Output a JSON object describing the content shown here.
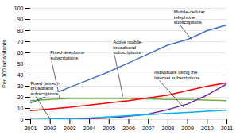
{
  "chart_data": {
    "type": "line",
    "x": [
      2001,
      2002,
      2003,
      2004,
      2005,
      2006,
      2007,
      2008,
      2009,
      2010,
      2011
    ],
    "series": [
      {
        "color": "#4472C4",
        "values": [
          15,
          22,
          29,
          36,
          43,
          51,
          59,
          67,
          72,
          80,
          85
        ]
      },
      {
        "color": "#70AD47",
        "values": [
          17,
          18,
          19,
          19,
          19,
          19,
          18.5,
          18,
          18,
          17.5,
          17
        ]
      },
      {
        "color": "#FF0000",
        "values": [
          8,
          9.5,
          11,
          13,
          15,
          17,
          19.5,
          22,
          26,
          30,
          33
        ]
      },
      {
        "color": "#7030A0",
        "values": [
          0,
          0,
          0.3,
          0.8,
          1.5,
          3,
          5,
          9,
          14,
          22,
          32
        ]
      },
      {
        "color": "#00B0F0",
        "values": [
          0,
          0.3,
          0.8,
          1.5,
          2.5,
          3.5,
          4.5,
          5.5,
          6.5,
          7.5,
          8.5
        ]
      }
    ],
    "annotations": [
      {
        "text": "Mobile-cellular\ntelephone\nsubscriptions",
        "xy": [
          2009.2,
          72
        ],
        "xytext": [
          2008.3,
          92
        ]
      },
      {
        "text": "Fixed-telephone\nsubscriptions",
        "xy": [
          2002.5,
          18
        ],
        "xytext": [
          2002.0,
          58
        ]
      },
      {
        "text": "Active mobile-\nbroadband\nsubscriptions",
        "xy": [
          2005.7,
          21
        ],
        "xytext": [
          2005.2,
          65
        ]
      },
      {
        "text": "Individuals using the\nInternet subscriptions",
        "xy": [
          2008.8,
          11
        ],
        "xytext": [
          2007.3,
          40
        ]
      },
      {
        "text": "Fixed (wired)-\nbroadband\nsubscriptions",
        "xy": [
          2002.0,
          0.3
        ],
        "xytext": [
          2001.0,
          28
        ]
      }
    ],
    "xlim": [
      2001,
      2011
    ],
    "ylim": [
      0,
      100
    ],
    "xticks": [
      2001,
      2002,
      2003,
      2004,
      2005,
      2006,
      2007,
      2008,
      2009,
      2010,
      2011
    ],
    "yticks": [
      0,
      10,
      20,
      30,
      40,
      50,
      60,
      70,
      80,
      90,
      100
    ],
    "ylabel": "Per 100 inhabitants",
    "grid": true
  }
}
